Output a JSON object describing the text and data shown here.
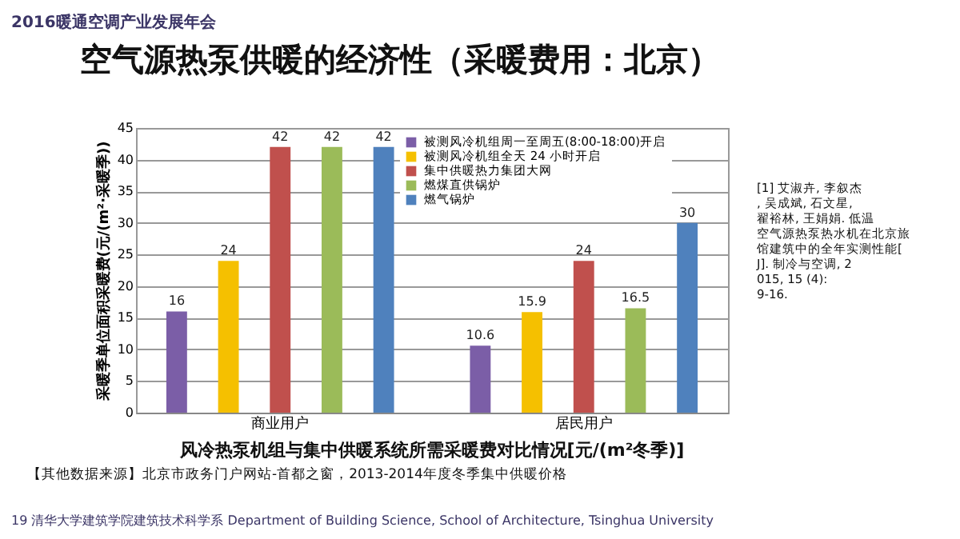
{
  "chart_data": {
    "type": "bar",
    "title": "空气源热泵供暖的经济性（采暖费用：北京）",
    "ylabel": "采暖季单位面积采暖费(元/(m²·采暖季))",
    "categories": [
      "商业用户",
      "居民用户"
    ],
    "series": [
      {
        "name": "被测风冷机组周一至周五(8:00-18:00)开启",
        "color": "#7b5ea7",
        "values": [
          16,
          10.6
        ]
      },
      {
        "name": "被测风冷机组全天 24 小时开启",
        "color": "#f5c000",
        "values": [
          24,
          15.9
        ]
      },
      {
        "name": "集中供暖热力集团大网",
        "color": "#c0504d",
        "values": [
          42,
          24
        ]
      },
      {
        "name": "燃煤直供锅炉",
        "color": "#9bbb59",
        "values": [
          42,
          16.5
        ]
      },
      {
        "name": "燃气锅炉",
        "color": "#4f81bd",
        "values": [
          42,
          30
        ]
      }
    ],
    "ylim": [
      0,
      45
    ],
    "yticks": [
      0,
      5,
      10,
      15,
      20,
      25,
      30,
      35,
      40,
      45
    ],
    "grid": "y",
    "legend": "top right",
    "data_labels": true,
    "annotations": [
      "2016暖通空调产业发展年会",
      "风冷热泵机组与集中供暖系统所需采暖费对比情况[元/(m²冬季)]",
      "【其他数据来源】北京市政务门户网站-首都之窗，2013-2014年度冬季集中供暖价格",
      "19 清华大学建筑学院建筑技术科学系 Department of Building Science, School of Architecture, Tsinghua University",
      "[1] 艾淑卉, 李叙杰, 吴成斌, 石文星, 翟裕林, 王娟娟. 低温空气源热泵热水机在北京旅馆建筑中的全年实测性能[J]. 制冷与空调, 2015, 15 (4): 9-16."
    ]
  }
}
